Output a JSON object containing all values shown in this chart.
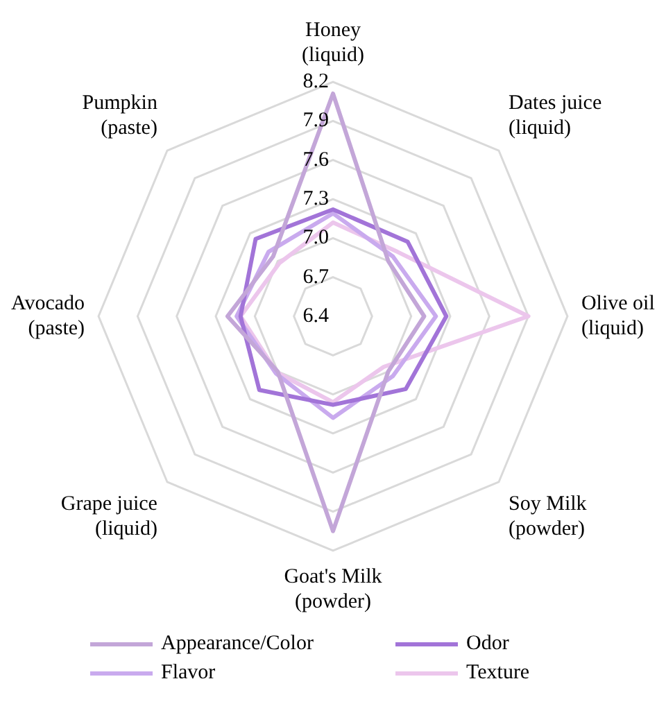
{
  "chart_data": {
    "type": "radar",
    "categories": [
      "Honey\n(liquid)",
      "Dates juice\n(liquid)",
      "Olive oil\n(liquid)",
      "Soy Milk\n(powder)",
      "Goat's Milk\n(powder)",
      "Grape juice\n(liquid)",
      "Avocado\n(paste)",
      "Pumpkin\n(paste)"
    ],
    "ylim": [
      6.4,
      8.2
    ],
    "yticks": [
      6.4,
      6.7,
      {
        "value": 7.0,
        "label": "7.0"
      },
      7.3,
      7.6,
      7.9,
      8.2
    ],
    "grid": true,
    "legend": "bottom",
    "marker": "none",
    "series": [
      {
        "name": "Appearance/Color",
        "color": "#c3a6d8",
        "values": [
          8.11,
          7.0,
          7.1,
          7.0,
          8.05,
          7.0,
          7.21,
          7.05
        ]
      },
      {
        "name": "Odor",
        "color": "#a274d8",
        "values": [
          7.22,
          7.21,
          7.27,
          7.19,
          7.08,
          7.2,
          7.11,
          7.24
        ]
      },
      {
        "name": "Flavor",
        "color": "#c9aaee",
        "values": [
          7.19,
          7.05,
          7.19,
          7.05,
          7.18,
          7.02,
          7.14,
          7.1
        ]
      },
      {
        "name": "Texture",
        "color": "#ecc6ec",
        "values": [
          7.12,
          7.1,
          7.9,
          6.95,
          7.06,
          7.01,
          7.11,
          6.98
        ]
      }
    ]
  }
}
